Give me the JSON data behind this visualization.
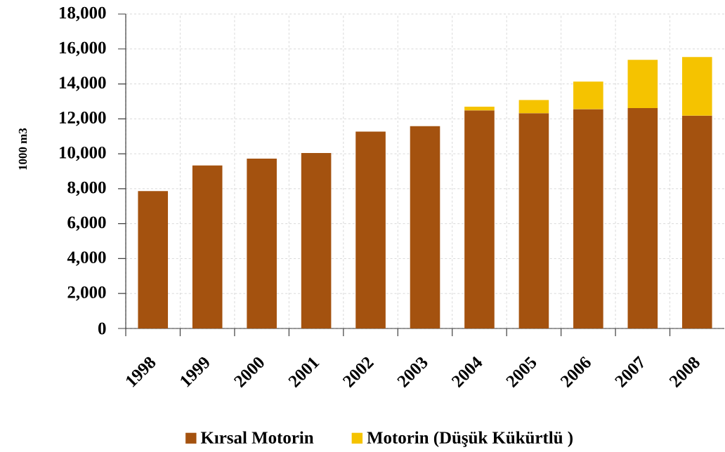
{
  "chart_data": {
    "type": "bar",
    "stacked": true,
    "ylabel": "1000 m3",
    "categories": [
      "1998",
      "1999",
      "2000",
      "2001",
      "2002",
      "2003",
      "2004",
      "2005",
      "2006",
      "2007",
      "2008"
    ],
    "series": [
      {
        "name": "Kırsal Motorin",
        "color": "#a4520f",
        "values": [
          7860,
          9330,
          9720,
          10040,
          11270,
          11580,
          12480,
          12320,
          12560,
          12620,
          12180
        ]
      },
      {
        "name": "Motorin (Düşük Kükürtlü )",
        "color": "#f5c300",
        "values": [
          null,
          null,
          null,
          null,
          null,
          null,
          220,
          760,
          1570,
          2760,
          3360
        ]
      }
    ],
    "ylim": [
      0,
      18000
    ],
    "yticks": [
      0,
      {
        "value": 2000,
        "label": "2,000"
      },
      {
        "value": 4000,
        "label": "4,000"
      },
      {
        "value": 6000,
        "label": "6,000"
      },
      {
        "value": 8000,
        "label": "8,000"
      },
      {
        "value": 10000,
        "label": "10,000"
      },
      {
        "value": 12000,
        "label": "12,000"
      },
      {
        "value": 14000,
        "label": "14,000"
      },
      {
        "value": 16000,
        "label": "16,000"
      },
      {
        "value": 18000,
        "label": "18,000"
      }
    ],
    "grid": true,
    "legend": "bottom"
  }
}
